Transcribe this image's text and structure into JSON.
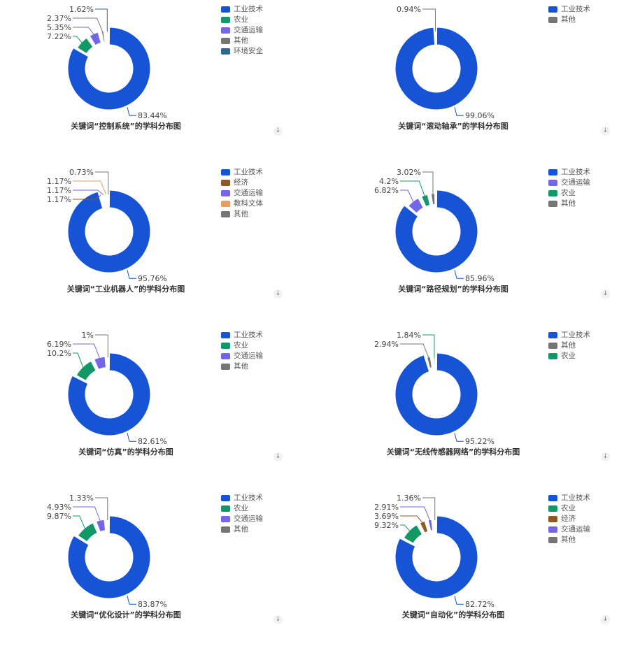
{
  "colors": {
    "工业技术": "#1753d5",
    "农业": "#129866",
    "交通运输": "#7467e7",
    "其他": "#757575",
    "环境安全": "#2b6a8f",
    "经济": "#8c5a22",
    "教科文体": "#e69d68"
  },
  "download_icon": "download-icon",
  "chart_data": [
    {
      "type": "pie",
      "title": "关键词“控制系统”的学科分布图",
      "legend": [
        "工业技术",
        "农业",
        "交通运输",
        "其他",
        "环境安全"
      ],
      "slices": [
        {
          "name": "工业技术",
          "value": 83.44,
          "label": "83.44%"
        },
        {
          "name": "农业",
          "value": 7.22,
          "label": "7.22%"
        },
        {
          "name": "交通运输",
          "value": 5.35,
          "label": "5.35%"
        },
        {
          "name": "其他",
          "value": 2.37,
          "label": "2.37%"
        },
        {
          "name": "环境安全",
          "value": 1.62,
          "label": "1.62%"
        }
      ]
    },
    {
      "type": "pie",
      "title": "关键词“滚动轴承”的学科分布图",
      "legend": [
        "工业技术",
        "其他"
      ],
      "slices": [
        {
          "name": "工业技术",
          "value": 99.06,
          "label": "99.06%"
        },
        {
          "name": "其他",
          "value": 0.94,
          "label": "0.94%"
        }
      ]
    },
    {
      "type": "pie",
      "title": "关键词“工业机器人”的学科分布图",
      "legend": [
        "工业技术",
        "经济",
        "交通运输",
        "教科文体",
        "其他"
      ],
      "slices": [
        {
          "name": "工业技术",
          "value": 95.76,
          "label": "95.76%"
        },
        {
          "name": "经济",
          "value": 1.17,
          "label": "1.17%"
        },
        {
          "name": "交通运输",
          "value": 1.17,
          "label": "1.17%"
        },
        {
          "name": "教科文体",
          "value": 1.17,
          "label": "1.17%"
        },
        {
          "name": "其他",
          "value": 0.73,
          "label": "0.73%"
        }
      ]
    },
    {
      "type": "pie",
      "title": "关键词“路径规划”的学科分布图",
      "legend": [
        "工业技术",
        "交通运输",
        "农业",
        "其他"
      ],
      "slices": [
        {
          "name": "工业技术",
          "value": 85.96,
          "label": "85.96%"
        },
        {
          "name": "交通运输",
          "value": 6.82,
          "label": "6.82%"
        },
        {
          "name": "农业",
          "value": 4.2,
          "label": "4.2%"
        },
        {
          "name": "其他",
          "value": 3.02,
          "label": "3.02%"
        }
      ]
    },
    {
      "type": "pie",
      "title": "关键词“仿真”的学科分布图",
      "legend": [
        "工业技术",
        "农业",
        "交通运输",
        "其他"
      ],
      "slices": [
        {
          "name": "工业技术",
          "value": 82.61,
          "label": "82.61%"
        },
        {
          "name": "农业",
          "value": 10.2,
          "label": "10.2%"
        },
        {
          "name": "交通运输",
          "value": 6.19,
          "label": "6.19%"
        },
        {
          "name": "其他",
          "value": 1,
          "label": "1%"
        }
      ]
    },
    {
      "type": "pie",
      "title": "关键词“无线传感器网络”的学科分布图",
      "legend": [
        "工业技术",
        "其他",
        "农业"
      ],
      "slices": [
        {
          "name": "工业技术",
          "value": 95.22,
          "label": "95.22%"
        },
        {
          "name": "其他",
          "value": 2.94,
          "label": "2.94%"
        },
        {
          "name": "农业",
          "value": 1.84,
          "label": "1.84%"
        }
      ]
    },
    {
      "type": "pie",
      "title": "关键词“优化设计”的学科分布图",
      "legend": [
        "工业技术",
        "农业",
        "交通运输",
        "其他"
      ],
      "slices": [
        {
          "name": "工业技术",
          "value": 83.87,
          "label": "83.87%"
        },
        {
          "name": "农业",
          "value": 9.87,
          "label": "9.87%"
        },
        {
          "name": "交通运输",
          "value": 4.93,
          "label": "4.93%"
        },
        {
          "name": "其他",
          "value": 1.33,
          "label": "1.33%"
        }
      ]
    },
    {
      "type": "pie",
      "title": "关键词“自动化”的学科分布图",
      "legend": [
        "工业技术",
        "农业",
        "经济",
        "交通运输",
        "其他"
      ],
      "slices": [
        {
          "name": "工业技术",
          "value": 82.72,
          "label": "82.72%"
        },
        {
          "name": "农业",
          "value": 9.32,
          "label": "9.32%"
        },
        {
          "name": "经济",
          "value": 3.69,
          "label": "3.69%"
        },
        {
          "name": "交通运输",
          "value": 2.91,
          "label": "2.91%"
        },
        {
          "name": "其他",
          "value": 1.36,
          "label": "1.36%"
        }
      ]
    }
  ]
}
